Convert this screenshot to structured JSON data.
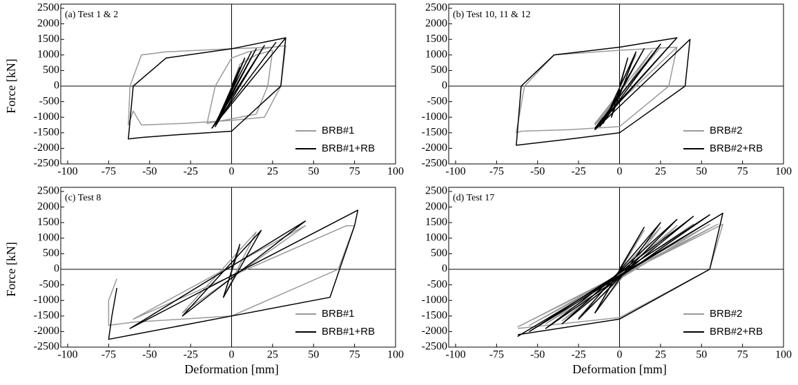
{
  "chart_data": [
    {
      "type": "line",
      "title": "(a) Test 1 & 2",
      "ylabel": "Force [kN]",
      "xlim": [
        -100,
        100
      ],
      "ylim": [
        -2500,
        2500
      ],
      "xticks": [
        -100,
        -75,
        -50,
        -25,
        0,
        25,
        50,
        75,
        100
      ],
      "yticks": [
        -2500,
        -2000,
        -1500,
        -1000,
        -500,
        0,
        500,
        1000,
        1500,
        2000,
        2500
      ],
      "legend": "lower right",
      "series": [
        {
          "name": "BRB#1",
          "color": "#999999",
          "x": [
            0,
            5,
            15,
            25,
            22,
            15,
            0,
            -10,
            -15,
            -10,
            0,
            10,
            25,
            33,
            30,
            20,
            0,
            -30,
            -55,
            -60,
            -63,
            -62,
            -55,
            -40,
            0,
            25,
            33
          ],
          "y": [
            0,
            700,
            1000,
            1150,
            0,
            -900,
            -1050,
            -1150,
            -1200,
            0,
            900,
            1100,
            1250,
            1300,
            0,
            -1000,
            -1100,
            -1200,
            -1250,
            -800,
            -1250,
            0,
            1000,
            1100,
            1200,
            1250,
            1300
          ]
        },
        {
          "name": "BRB#1+RB",
          "color": "#000000",
          "x": [
            0,
            5,
            -5,
            8,
            -8,
            12,
            -10,
            15,
            -10,
            20,
            -12,
            27,
            -12,
            33,
            30,
            0,
            -30,
            -55,
            -63,
            -60,
            -40,
            0,
            33
          ],
          "y": [
            0,
            600,
            -800,
            900,
            -1000,
            1100,
            -1200,
            1200,
            -1300,
            1300,
            -1350,
            1400,
            -1350,
            1550,
            0,
            -1450,
            -1550,
            -1650,
            -1700,
            0,
            900,
            1200,
            1550
          ]
        }
      ]
    },
    {
      "type": "line",
      "title": "(b) Test 10, 11 & 12",
      "xlim": [
        -100,
        100
      ],
      "ylim": [
        -2500,
        2500
      ],
      "xticks": [
        -100,
        -75,
        -50,
        -25,
        0,
        25,
        50,
        75,
        100
      ],
      "yticks": [
        -2500,
        -2000,
        -1500,
        -1000,
        -500,
        0,
        500,
        1000,
        1500,
        2000,
        2500
      ],
      "legend": "lower right",
      "series": [
        {
          "name": "BRB#2",
          "color": "#999999",
          "x": [
            0,
            10,
            -10,
            20,
            -15,
            25,
            -15,
            35,
            30,
            0,
            -30,
            -60,
            -63,
            -58,
            -40,
            0,
            35
          ],
          "y": [
            0,
            1000,
            -1100,
            1150,
            -1200,
            1250,
            -1250,
            1250,
            0,
            -1300,
            -1400,
            -1450,
            -1500,
            0,
            1000,
            1150,
            1250
          ]
        },
        {
          "name": "BRB#2+RB",
          "color": "#000000",
          "x": [
            0,
            5,
            -5,
            10,
            -10,
            15,
            -12,
            25,
            -15,
            35,
            -15,
            43,
            40,
            0,
            -30,
            -63,
            -60,
            -40,
            0,
            35
          ],
          "y": [
            0,
            900,
            -1000,
            1100,
            -1200,
            1200,
            -1300,
            1350,
            -1350,
            1550,
            -1400,
            1500,
            0,
            -1500,
            -1700,
            -1900,
            0,
            1000,
            1250,
            1550
          ]
        }
      ]
    },
    {
      "type": "line",
      "title": "(c) Test 8",
      "xlabel": "Deformation [mm]",
      "ylabel": "Force [kN]",
      "xlim": [
        -100,
        100
      ],
      "ylim": [
        -2500,
        2500
      ],
      "xticks": [
        -100,
        -75,
        -50,
        -25,
        0,
        25,
        50,
        75,
        100
      ],
      "yticks": [
        -2500,
        -2000,
        -1500,
        -1000,
        -500,
        0,
        500,
        1000,
        1500,
        2000,
        2500
      ],
      "legend": "lower right",
      "series": [
        {
          "name": "BRB#1",
          "color": "#999999",
          "x": [
            0,
            5,
            -5,
            15,
            -30,
            45,
            -60,
            70,
            75,
            65,
            0,
            -60,
            -75,
            -75,
            -70
          ],
          "y": [
            0,
            700,
            -900,
            1200,
            -1400,
            1400,
            -1600,
            1400,
            1400,
            0,
            -1500,
            -1700,
            -1800,
            -1000,
            -300
          ]
        },
        {
          "name": "BRB#1+RB",
          "color": "#000000",
          "x": [
            0,
            5,
            -5,
            18,
            -30,
            45,
            -62,
            77,
            75,
            60,
            0,
            -60,
            -75,
            -73,
            -70
          ],
          "y": [
            0,
            800,
            -900,
            1250,
            -1500,
            1550,
            -1900,
            1900,
            1400,
            -900,
            -1500,
            -2100,
            -2250,
            -1500,
            -600
          ]
        }
      ]
    },
    {
      "type": "line",
      "title": "(d) Test 17",
      "xlabel": "Deformation [mm]",
      "xlim": [
        -100,
        100
      ],
      "ylim": [
        -2500,
        2500
      ],
      "xticks": [
        -100,
        -75,
        -50,
        -25,
        0,
        25,
        50,
        75,
        100
      ],
      "yticks": [
        -2500,
        -2000,
        -1500,
        -1000,
        -500,
        0,
        500,
        1000,
        1500,
        2000,
        2500
      ],
      "legend": "lower right",
      "series": [
        {
          "name": "BRB#2",
          "color": "#999999",
          "x": [
            0,
            15,
            -15,
            25,
            -25,
            35,
            -35,
            45,
            -45,
            55,
            -55,
            60,
            -62,
            63,
            55,
            0,
            -62
          ],
          "y": [
            0,
            1250,
            -1400,
            1350,
            -1550,
            1400,
            -1650,
            1450,
            -1750,
            1450,
            -1800,
            1450,
            -1850,
            1450,
            0,
            -1550,
            -1900
          ]
        },
        {
          "name": "BRB#2+RB",
          "color": "#000000",
          "x": [
            0,
            15,
            -15,
            25,
            -25,
            35,
            -35,
            45,
            -45,
            55,
            -55,
            63,
            -62,
            63,
            55,
            0,
            -62
          ],
          "y": [
            0,
            1350,
            -1400,
            1500,
            -1600,
            1600,
            -1750,
            1700,
            -1900,
            1750,
            -2000,
            1800,
            -2150,
            1800,
            0,
            -1600,
            -2100
          ]
        }
      ]
    }
  ]
}
